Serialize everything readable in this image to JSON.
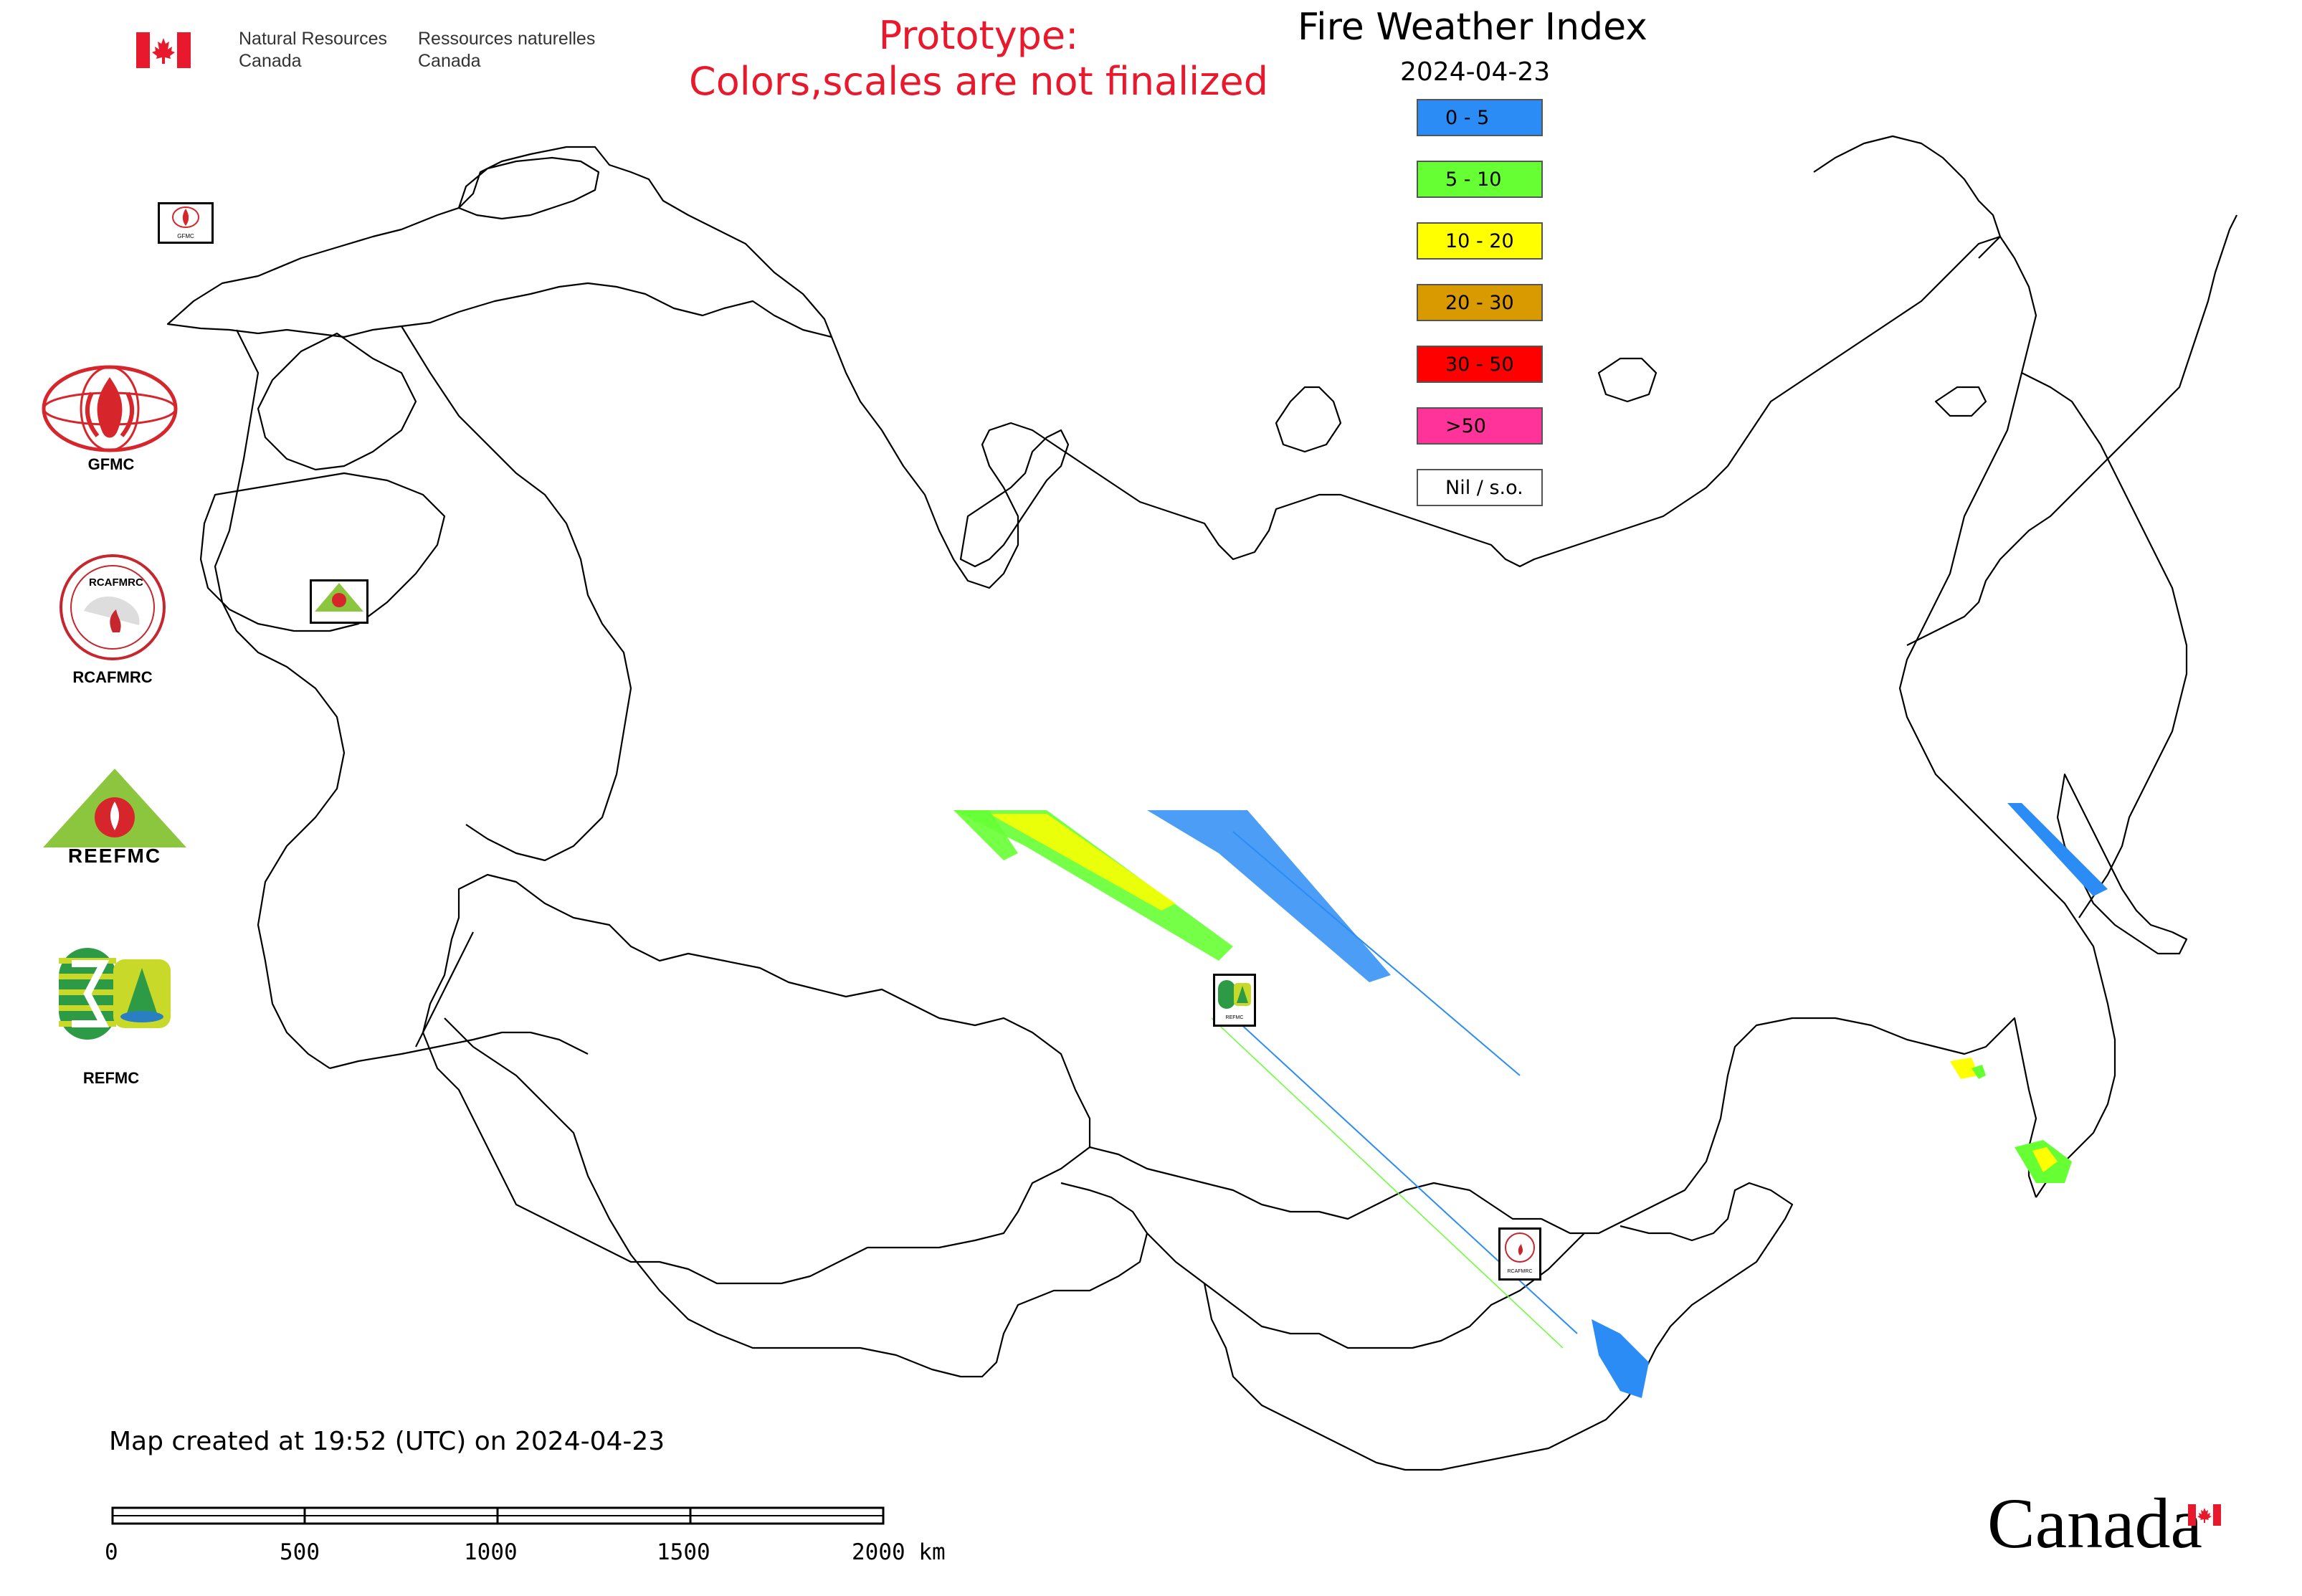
{
  "header": {
    "agency_en": [
      "Natural Resources",
      "Canada"
    ],
    "agency_fr": [
      "Ressources naturelles",
      "Canada"
    ],
    "prototype_line1": "Prototype:",
    "prototype_line2": "Colors,scales are not finalized",
    "title": "Fire Weather Index",
    "date": "2024-04-23"
  },
  "legend": {
    "items": [
      {
        "label": "0 - 5",
        "color": "#2b8cf5"
      },
      {
        "label": "5 - 10",
        "color": "#66ff33"
      },
      {
        "label": "10 - 20",
        "color": "#ffff00"
      },
      {
        "label": "20 - 30",
        "color": "#d99a00"
      },
      {
        "label": "30 - 50",
        "color": "#ff0000"
      },
      {
        "label": ">50",
        "color": "#ff3399"
      },
      {
        "label": "Nil / s.o.",
        "color": "#ffffff"
      }
    ]
  },
  "organizations": [
    {
      "label": "GFMC"
    },
    {
      "label": "RCAFMRC"
    },
    {
      "label": "REFMC"
    }
  ],
  "logo_text": {
    "gfmc_small": "GFMC",
    "rcafmrc_small": "RCAFMRC",
    "refmc_small": "REFMC",
    "reefmc_logo": "REEFMC",
    "rcafmrc_logo": "RCAFMRC"
  },
  "footer": {
    "created": "Map created at 19:52 (UTC) on 2024-04-23",
    "scale_ticks": [
      "0",
      "500",
      "1000",
      "1500",
      "2000 km"
    ],
    "wordmark": "Canada"
  },
  "colors": {
    "prototype_text": "#e8192c",
    "canada_red": "#e8192c",
    "boundary": "#000000"
  }
}
